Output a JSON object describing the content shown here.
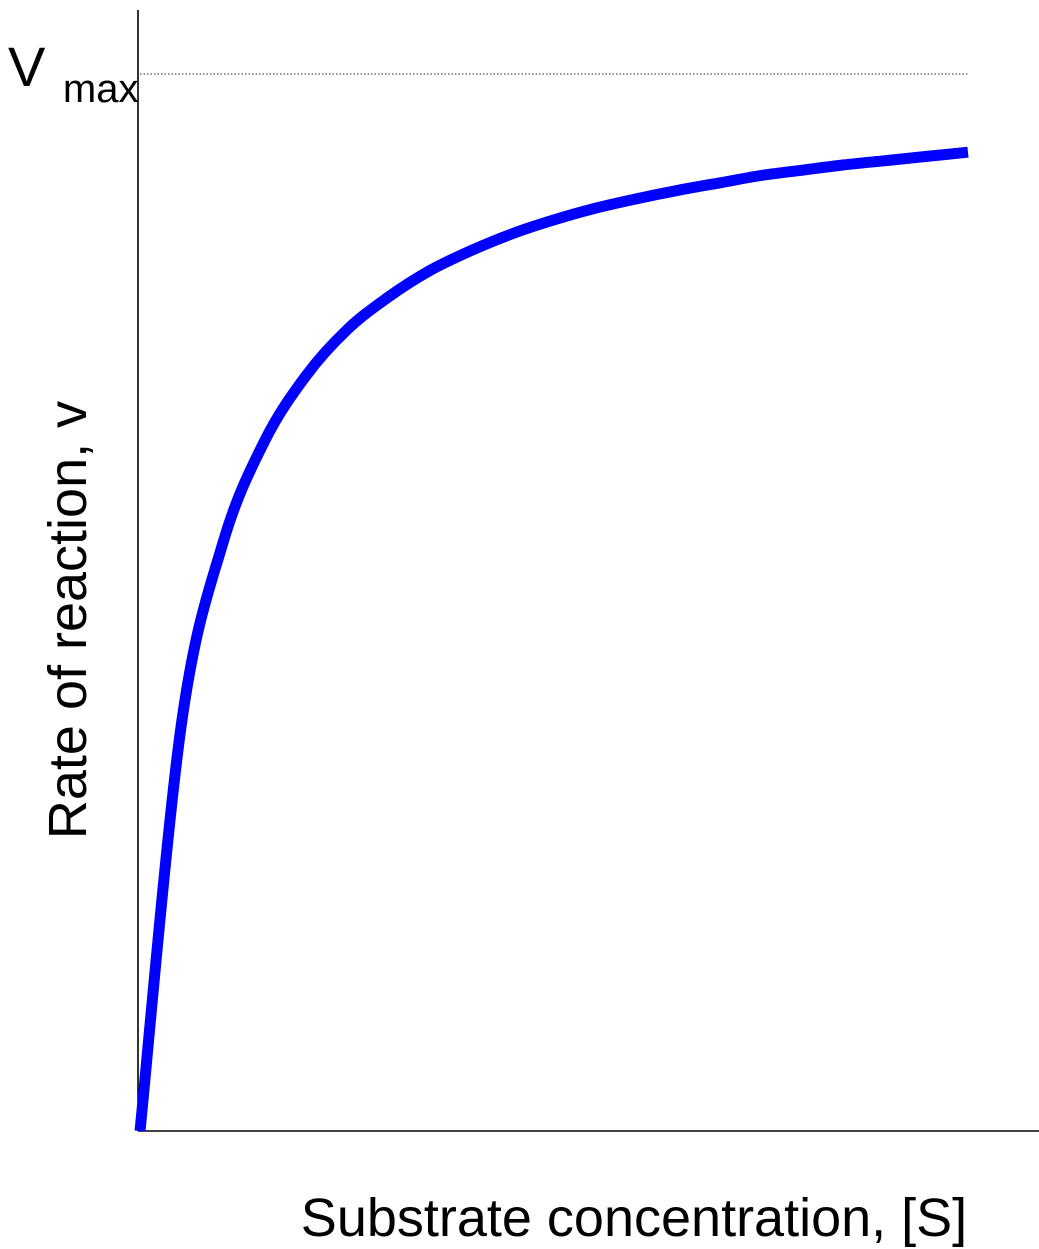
{
  "chart_data": {
    "type": "line",
    "title": "",
    "xlabel": "Substrate concentration, [S]",
    "ylabel": "Rate of reaction, v",
    "reference_line": {
      "main": "V",
      "subscript": "max",
      "value": 1.0
    },
    "xlim": [
      0,
      10
    ],
    "ylim": [
      0,
      1.0
    ],
    "grid": false,
    "ticks": false,
    "series": [
      {
        "color": "#0000ff",
        "x": [
          0,
          0.5,
          1,
          1.5,
          2,
          2.5,
          3,
          3.5,
          4,
          4.5,
          5,
          5.5,
          6,
          6.5,
          7,
          7.5,
          8,
          8.5,
          9,
          9.5,
          10
        ],
        "y": [
          0,
          0.385,
          0.556,
          0.652,
          0.714,
          0.758,
          0.789,
          0.814,
          0.833,
          0.849,
          0.862,
          0.873,
          0.882,
          0.89,
          0.897,
          0.904,
          0.909,
          0.914,
          0.918,
          0.922,
          0.926
        ]
      }
    ]
  }
}
